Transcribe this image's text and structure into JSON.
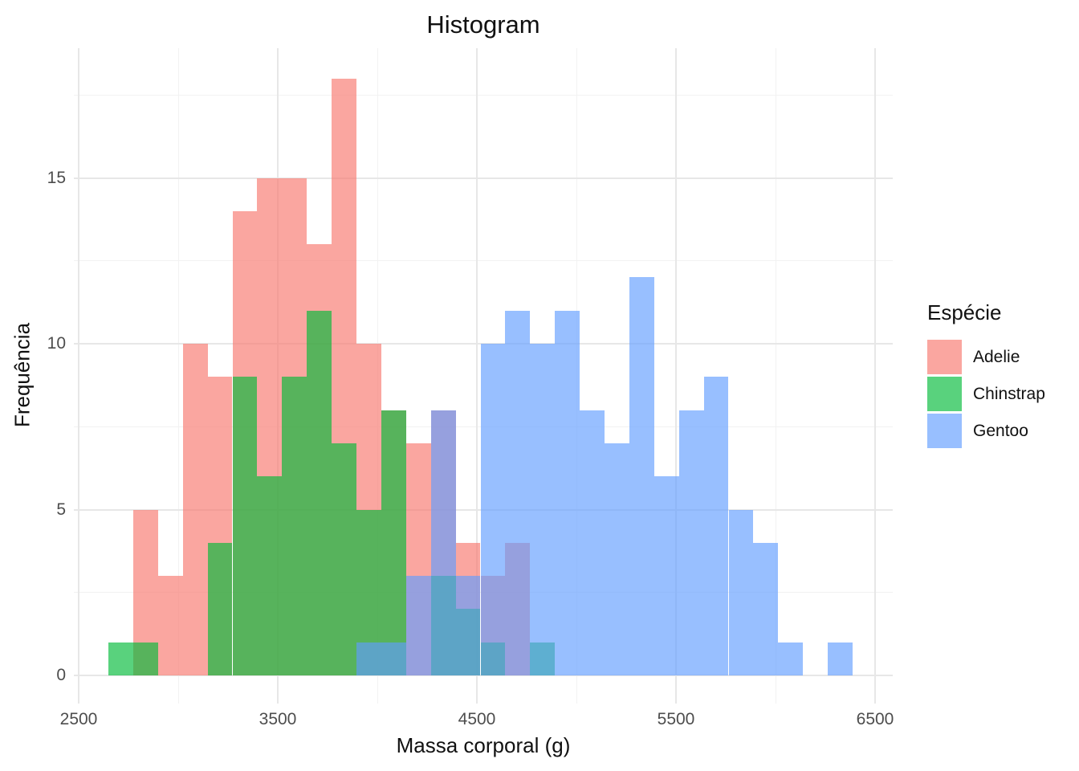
{
  "title": "Histogram",
  "x_axis": {
    "label": "Massa corporal (g)",
    "ticks": [
      2500,
      3500,
      4500,
      5500,
      6500
    ],
    "minor_ticks": [
      3000,
      4000,
      5000,
      6000
    ]
  },
  "y_axis": {
    "label": "Frequência",
    "ticks": [
      0,
      5,
      10,
      15
    ],
    "minor_ticks": [
      2.5,
      7.5,
      12.5,
      17.5
    ]
  },
  "legend": {
    "title": "Espécie",
    "items": [
      {
        "label": "Adelie",
        "color": "#F8766D"
      },
      {
        "label": "Chinstrap",
        "color": "#00BA38"
      },
      {
        "label": "Gentoo",
        "color": "#619CFF"
      }
    ]
  },
  "chart_data": {
    "type": "histogram",
    "title": "Histogram",
    "xlabel": "Massa corporal (g)",
    "ylabel": "Frequência",
    "xlim": [
      2452,
      6613
    ],
    "ylim": [
      0,
      18.9
    ],
    "grid": "on",
    "legend_position": "right",
    "bin_width_g": 124.14,
    "first_bin_start_g": 2637.9,
    "fill_alpha": 0.65,
    "series": [
      {
        "name": "Adelie",
        "color": "#F8766D",
        "counts": [
          0,
          5,
          3,
          10,
          9,
          14,
          15,
          15,
          13,
          18,
          10,
          8,
          7,
          8,
          4,
          3,
          4,
          0,
          0,
          0,
          0,
          0,
          0,
          0,
          0,
          0,
          0,
          0,
          0,
          0
        ]
      },
      {
        "name": "Chinstrap",
        "color": "#00BA38",
        "counts": [
          1,
          1,
          0,
          0,
          4,
          9,
          6,
          9,
          11,
          7,
          5,
          8,
          0,
          3,
          2,
          1,
          0,
          1,
          0,
          0,
          0,
          0,
          0,
          0,
          0,
          0,
          0,
          0,
          0,
          0
        ]
      },
      {
        "name": "Gentoo",
        "color": "#619CFF",
        "counts": [
          0,
          0,
          0,
          0,
          0,
          0,
          0,
          0,
          0,
          0,
          1,
          1,
          3,
          8,
          3,
          10,
          11,
          10,
          11,
          8,
          7,
          12,
          6,
          8,
          9,
          5,
          4,
          1,
          0,
          1
        ]
      }
    ]
  }
}
